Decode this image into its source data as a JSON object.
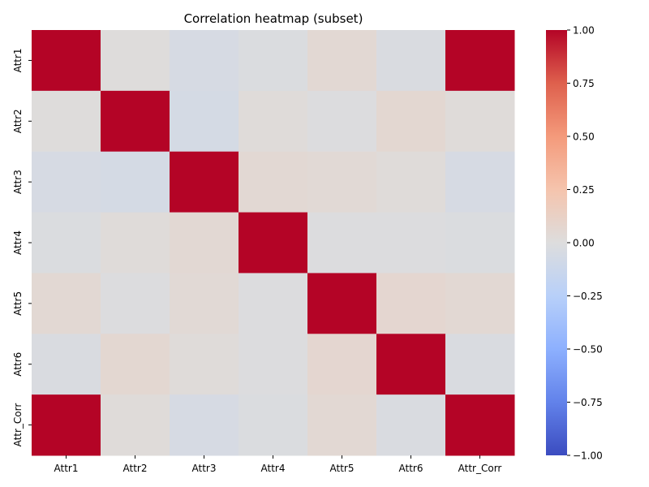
{
  "chart_data": {
    "type": "heatmap",
    "title": "Correlation heatmap (subset)",
    "xlabel": "",
    "ylabel": "",
    "x_categories": [
      "Attr1",
      "Attr2",
      "Attr3",
      "Attr4",
      "Attr5",
      "Attr6",
      "Attr_Corr"
    ],
    "y_categories": [
      "Attr1",
      "Attr2",
      "Attr3",
      "Attr4",
      "Attr5",
      "Attr6",
      "Attr_Corr"
    ],
    "values": [
      [
        1.0,
        0.01,
        -0.05,
        -0.02,
        0.05,
        -0.03,
        1.0
      ],
      [
        0.01,
        1.0,
        -0.06,
        0.02,
        -0.01,
        0.06,
        0.02
      ],
      [
        -0.05,
        -0.06,
        1.0,
        0.05,
        0.04,
        0.02,
        -0.05
      ],
      [
        -0.02,
        0.02,
        0.05,
        1.0,
        -0.01,
        -0.01,
        -0.02
      ],
      [
        0.05,
        -0.01,
        0.04,
        -0.01,
        1.0,
        0.07,
        0.05
      ],
      [
        -0.03,
        0.06,
        0.02,
        -0.01,
        0.07,
        1.0,
        -0.03
      ],
      [
        1.0,
        0.02,
        -0.05,
        -0.02,
        0.05,
        -0.03,
        1.0
      ]
    ],
    "colormap": "coolwarm",
    "vmin": -1.0,
    "vmax": 1.0,
    "colorbar_ticks": [
      1.0,
      0.75,
      0.5,
      0.25,
      0.0,
      -0.25,
      -0.5,
      -0.75,
      -1.0
    ],
    "colorbar_tick_labels": [
      "1.00",
      "0.75",
      "0.50",
      "0.25",
      "0.00",
      "−0.25",
      "−0.50",
      "−0.75",
      "−1.00"
    ],
    "grid": false,
    "legend": "colorbar-right"
  }
}
